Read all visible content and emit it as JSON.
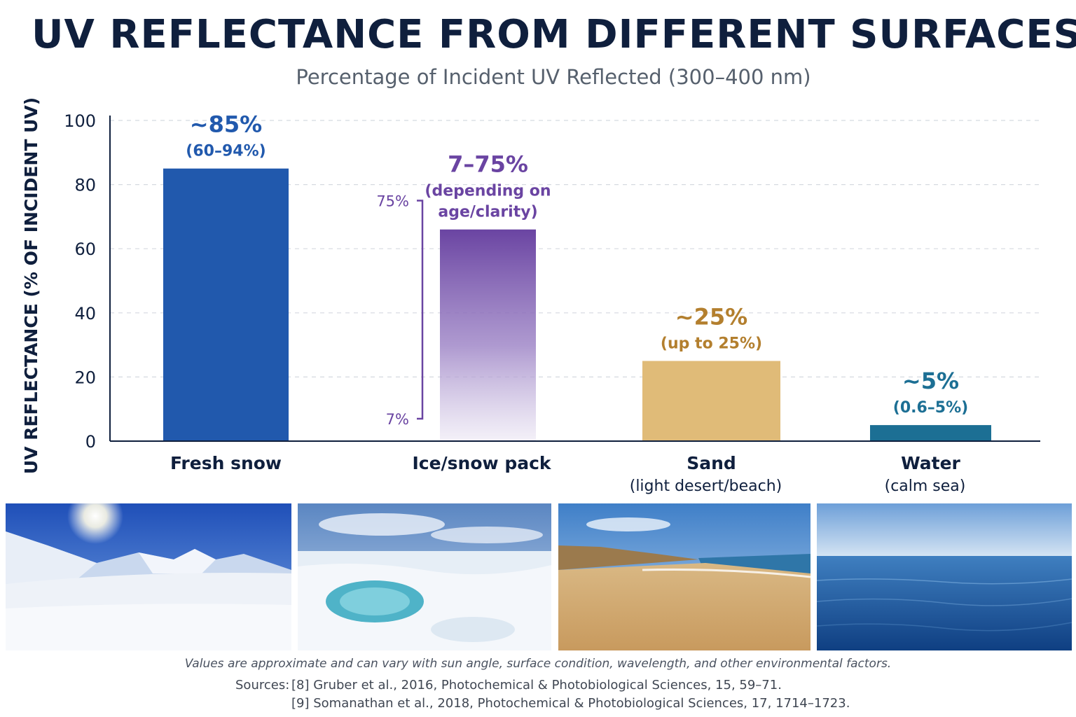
{
  "title": "UV REFLECTANCE FROM DIFFERENT SURFACES",
  "subtitle": "Percentage of Incident UV Reflected (300–400 nm)",
  "chart_data": {
    "type": "bar",
    "ylabel": "UV REFLECTANCE (% OF INCIDENT UV)",
    "ylim": [
      0,
      100
    ],
    "yticks": [
      "0",
      "20",
      "40",
      "60",
      "80",
      "100"
    ],
    "grid": true,
    "categories": [
      {
        "name": "Fresh snow",
        "sublabel": "",
        "value": 85,
        "label_main": "~85%",
        "label_sub": [
          "(60–94%)"
        ],
        "color": "#2159ad"
      },
      {
        "name": "Ice/snow pack",
        "sublabel": "",
        "value": 66,
        "range": [
          7,
          75
        ],
        "range_labels": [
          "75%",
          "7%"
        ],
        "label_main": "7–75%",
        "label_sub": [
          "(depending on",
          "age/clarity)"
        ],
        "color": "#6a44a2"
      },
      {
        "name": "Sand",
        "sublabel": "(light desert/beach)",
        "value": 25,
        "label_main": "~25%",
        "label_sub": [
          "(up to 25%)"
        ],
        "color": "#e0bb78"
      },
      {
        "name": "Water",
        "sublabel": "(calm sea)",
        "value": 5,
        "label_main": "~5%",
        "label_sub": [
          "(0.6–5%)"
        ],
        "color": "#1c6f94"
      }
    ]
  },
  "label_colors": [
    "#2159ad",
    "#6a44a2",
    "#b37f2e",
    "#1c6f94"
  ],
  "photos": [
    {
      "icon": "fresh-snow-photo"
    },
    {
      "icon": "ice-pack-photo"
    },
    {
      "icon": "sand-beach-photo"
    },
    {
      "icon": "calm-sea-photo"
    }
  ],
  "footnote": "Values are approximate and can vary with sun angle, surface condition, wavelength, and other environmental factors.",
  "sources": {
    "label": "Sources:",
    "items": [
      "[8] Gruber et al., 2016, Photochemical & Photobiological Sciences, 15, 59–71.",
      "[9] Somanathan et al., 2018, Photochemical & Photobiological Sciences, 17, 1714–1723."
    ]
  }
}
